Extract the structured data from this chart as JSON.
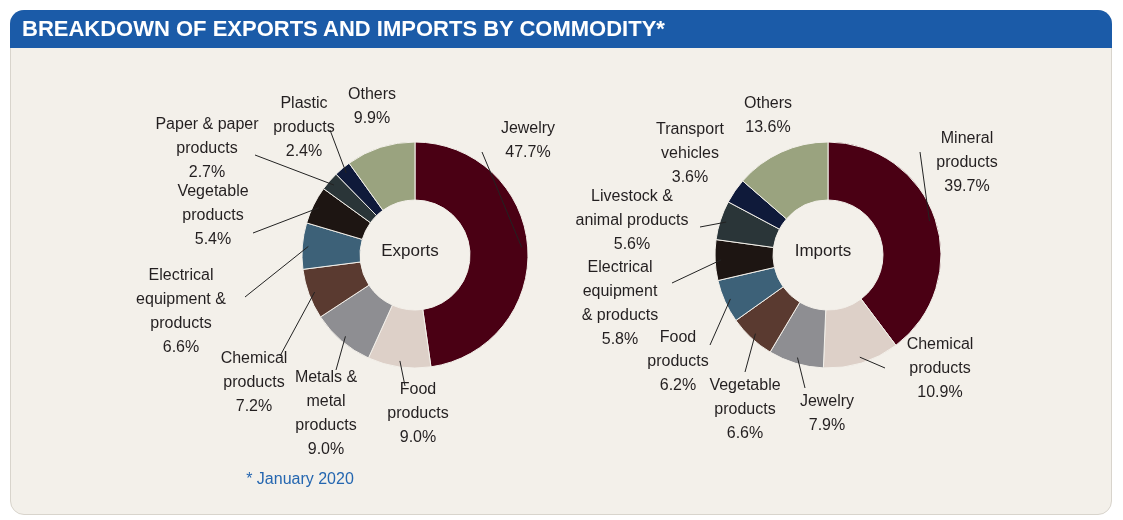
{
  "chart_data": [
    {
      "type": "other",
      "title": "BREAKDOWN OF EXPORTS AND IMPORTS BY COMMODITY*"
    },
    {
      "type": "donut",
      "title": "Exports",
      "categories": [
        "Jewelry",
        "Food products",
        "Metals & metal products",
        "Chemical products",
        "Electrical equipment & products",
        "Vegetable products",
        "Paper & paper products",
        "Plastic products",
        "Others"
      ],
      "values": [
        47.7,
        9.0,
        9.0,
        7.2,
        6.6,
        5.4,
        2.7,
        2.4,
        9.9
      ],
      "colors": [
        "#4a0014",
        "#ddd0c8",
        "#8e8e92",
        "#5a3a30",
        "#3d6178",
        "#1d1512",
        "#2a3538",
        "#0f1a3a",
        "#9aa37f"
      ],
      "value_labels": [
        "47.7%",
        "9.0%",
        "9.0%",
        "7.2%",
        "6.6%",
        "5.4%",
        "2.7%",
        "2.4%",
        "9.9%"
      ],
      "annotations": [
        "* January 2020"
      ]
    },
    {
      "type": "donut",
      "title": "Imports",
      "categories": [
        "Mineral products",
        "Chemical products",
        "Jewelry",
        "Vegetable products",
        "Food products",
        "Electrical equipment & products",
        "Livestock & animal products",
        "Transport vehicles",
        "Others"
      ],
      "values": [
        39.7,
        10.9,
        7.9,
        6.6,
        6.2,
        5.8,
        5.6,
        3.6,
        13.6
      ],
      "colors": [
        "#4a0014",
        "#ddd0c8",
        "#8e8e92",
        "#5a3a30",
        "#3d6178",
        "#1d1512",
        "#2a3538",
        "#0f1a3a",
        "#9aa37f"
      ],
      "value_labels": [
        "39.7%",
        "10.9%",
        "7.9%",
        "6.6%",
        "6.2%",
        "5.8%",
        "5.6%",
        "3.6%",
        "13.6%"
      ]
    }
  ]
}
